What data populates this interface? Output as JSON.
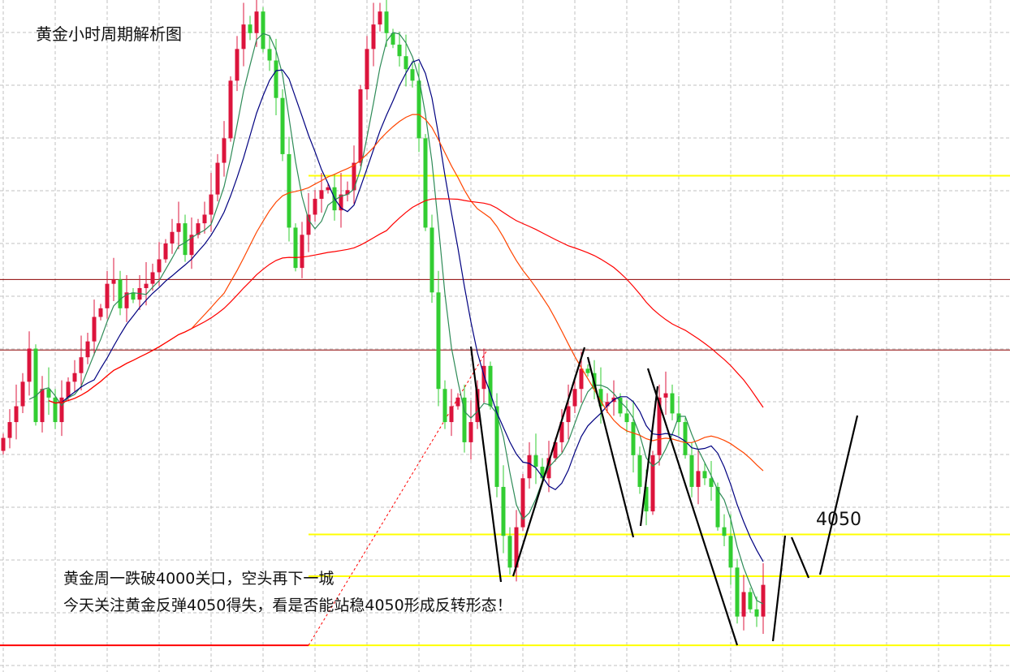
{
  "chart_data": {
    "type": "candlestick",
    "title": "黄金小时周期解析图",
    "annotations": [
      "黄金周一跌破4000关口，空头再下一城",
      "今天关注黄金反弹4050得失，看是否能站稳4050形成反转形态！",
      "4050"
    ],
    "grid": true,
    "candle_colors": {
      "up": "#dc143c",
      "down": "#32cd32"
    },
    "first_open": 4105,
    "close": [
      4114,
      4125,
      4136,
      4153,
      4176,
      4125,
      4148,
      4142,
      4125,
      4142,
      4153,
      4159,
      4170,
      4181,
      4198,
      4204,
      4221,
      4224,
      4204,
      4215,
      4210,
      4218,
      4221,
      4229,
      4238,
      4249,
      4257,
      4263,
      4241,
      4255,
      4263,
      4269,
      4283,
      4305,
      4322,
      4362,
      4384,
      4401,
      4395,
      4410,
      4384,
      4376,
      4350,
      4311,
      4260,
      4232,
      4255,
      4269,
      4280,
      4286,
      4288,
      4272,
      4283,
      4286,
      4305,
      4356,
      4384,
      4401,
      4410,
      4395,
      4387,
      4379,
      4370,
      4362,
      4322,
      4260,
      4215,
      4148,
      4125,
      4136,
      4142,
      4111,
      4125,
      4148,
      4164,
      4136,
      4080,
      4046,
      4024,
      4052,
      4086,
      4102,
      4094,
      4086,
      4100,
      4111,
      4125,
      4136,
      4148,
      4162,
      4159,
      4148,
      4136,
      4139,
      4142,
      4131,
      4125,
      4102,
      4080,
      4063,
      4102,
      4142,
      4145,
      4131,
      4125,
      4102,
      4080,
      4091,
      4086,
      4080,
      4052,
      4046,
      4024,
      3990,
      4007,
      3995,
      3990,
      4012
    ],
    "moving_averages": [
      {
        "period": 5,
        "color": "#2e8b57"
      },
      {
        "period": 10,
        "color": "#000080"
      },
      {
        "period": 30,
        "color": "#ff4500"
      },
      {
        "period": 60,
        "color": "#ff0000"
      }
    ],
    "horizontal_levels": [
      {
        "price": 4296,
        "color": "#ffff00"
      },
      {
        "price": 4047,
        "color": "#ffff00"
      },
      {
        "price": 4018,
        "color": "#ffff00"
      },
      {
        "price": 3970,
        "color": "#ffff00"
      },
      {
        "price": 4224,
        "color": "#8b0000"
      },
      {
        "price": 4175,
        "color": "#8b0000"
      }
    ]
  }
}
